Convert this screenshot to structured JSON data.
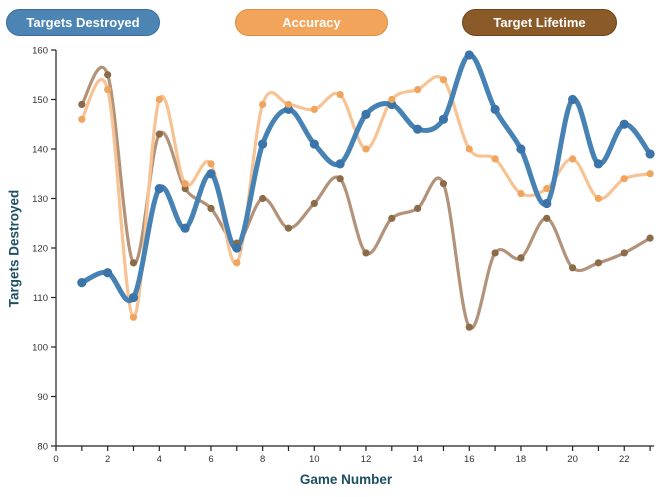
{
  "legend": [
    {
      "label": "Targets Destroyed",
      "color": "#4c84b4",
      "border": "#3a6e99"
    },
    {
      "label": "Accuracy",
      "color": "#f3a45b",
      "border": "#d98b3f"
    },
    {
      "label": "Target Lifetime",
      "color": "#8a5a28",
      "border": "#6b431b"
    }
  ],
  "axes": {
    "x_label": "Game Number",
    "y_label": "Targets Destroyed",
    "y_tick_labels": [
      "80",
      "90",
      "100",
      "110",
      "120",
      "130",
      "140",
      "150",
      "160"
    ],
    "x_tick_labels": [
      "0",
      "2",
      "4",
      "6",
      "8",
      "10",
      "12",
      "14",
      "16",
      "18",
      "20",
      "22"
    ]
  },
  "chart_data": {
    "type": "line",
    "x": [
      1,
      2,
      3,
      4,
      5,
      6,
      7,
      8,
      9,
      10,
      11,
      12,
      13,
      14,
      15,
      16,
      17,
      18,
      19,
      20,
      21,
      22,
      23
    ],
    "series": [
      {
        "name": "Targets Destroyed",
        "line_color": "#4682b4",
        "marker_color": "#3a74a8",
        "values": [
          113,
          115,
          110,
          132,
          124,
          135,
          120,
          141,
          148,
          141,
          137,
          147,
          149,
          144,
          146,
          159,
          148,
          140,
          129,
          150,
          137,
          145,
          139
        ]
      },
      {
        "name": "Accuracy",
        "line_color": "#f8c394",
        "marker_color": "#efa55e",
        "values": [
          146,
          152,
          106,
          150,
          133,
          137,
          117,
          149,
          149,
          148,
          151,
          140,
          150,
          152,
          154,
          140,
          138,
          131,
          132,
          138,
          130,
          134,
          135
        ]
      },
      {
        "name": "Target Lifetime",
        "line_color": "#b2937a",
        "marker_color": "#8c6b49",
        "values": [
          149,
          155,
          117,
          143,
          132,
          128,
          121,
          130,
          124,
          129,
          134,
          119,
          126,
          128,
          133,
          104,
          119,
          118,
          126,
          116,
          117,
          119,
          122
        ]
      }
    ],
    "title": "",
    "xlabel": "Game Number",
    "ylabel": "Targets Destroyed",
    "xlim": [
      0,
      23
    ],
    "ylim": [
      80,
      160
    ],
    "y_tick_step": 10,
    "x_tick_label_step": 2,
    "grid": false,
    "legend_position": "top"
  }
}
